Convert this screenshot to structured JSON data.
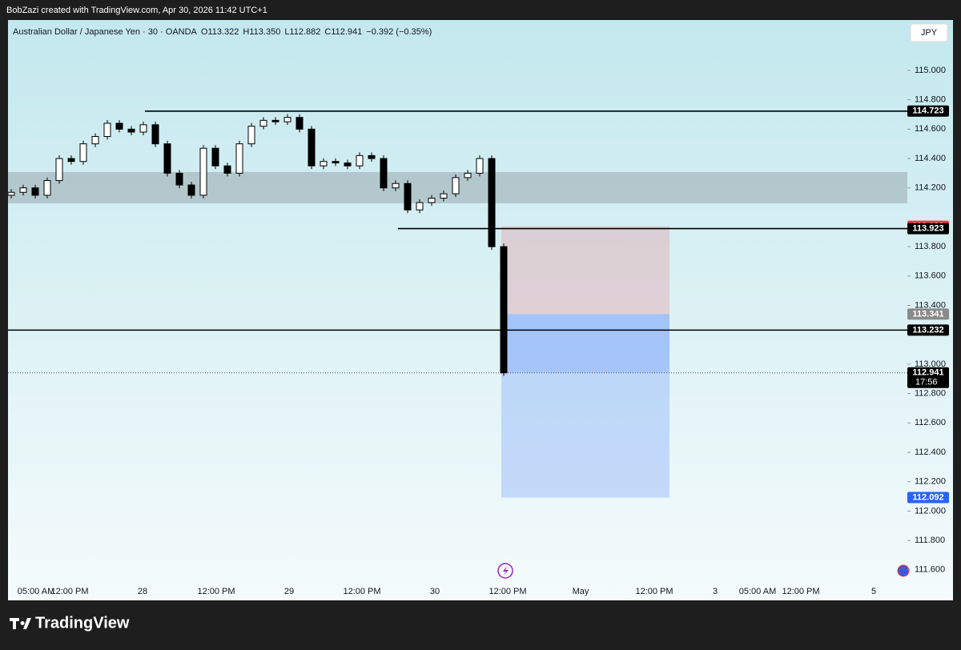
{
  "chart_data": {
    "type": "candlestick",
    "attribution": "BobZazi created with TradingView.com, Apr 30, 2026 11:42 UTC+1",
    "legend": {
      "symbol": "Australian Dollar / Japanese Yen · 30 · OANDA",
      "open": "O113.322",
      "high": "H113.350",
      "low": "L112.882",
      "close": "C112.941",
      "change": "−0.392 (−0.35%)"
    },
    "currency": "JPY",
    "brand": "TradingView",
    "first_open": 114.15,
    "closes": [
      114.17,
      114.2,
      114.15,
      114.25,
      114.4,
      114.38,
      114.5,
      114.55,
      114.64,
      114.6,
      114.58,
      114.63,
      114.5,
      114.3,
      114.22,
      114.15,
      114.47,
      114.35,
      114.3,
      114.5,
      114.62,
      114.66,
      114.65,
      114.68,
      114.6,
      114.35,
      114.38,
      114.37,
      114.35,
      114.42,
      114.4,
      114.2,
      114.23,
      114.05,
      114.1,
      114.13,
      114.16,
      114.27,
      114.3,
      114.4,
      113.8,
      112.941
    ],
    "ylim": [
      111.392,
      115.343
    ],
    "yticks": [
      {
        "value": 115.0,
        "label": "115.000"
      },
      {
        "value": 114.8,
        "label": "114.800"
      },
      {
        "value": 114.6,
        "label": "114.600"
      },
      {
        "value": 114.4,
        "label": "114.400"
      },
      {
        "value": 114.2,
        "label": "114.200"
      },
      {
        "value": 113.8,
        "label": "113.800"
      },
      {
        "value": 113.6,
        "label": "113.600"
      },
      {
        "value": 113.4,
        "label": "113.400"
      },
      {
        "value": 113.0,
        "label": "113.000"
      },
      {
        "value": 112.8,
        "label": "112.800"
      },
      {
        "value": 112.6,
        "label": "112.600"
      },
      {
        "value": 112.4,
        "label": "112.400"
      },
      {
        "value": 112.2,
        "label": "112.200"
      },
      {
        "value": 112.0,
        "label": "112.000"
      },
      {
        "value": 111.8,
        "label": "111.800"
      },
      {
        "value": 111.6,
        "label": "111.600"
      }
    ],
    "x_labels": [
      "05:00 AM",
      "12:00 PM",
      "28",
      "12:00 PM",
      "29",
      "12:00 PM",
      "30",
      "12:00 PM",
      "May",
      "12:00 PM",
      "3",
      "05:00 AM",
      "12:00 PM",
      "5"
    ],
    "zone": [
      114.095,
      114.308
    ],
    "horizontal_lines": [
      114.723,
      113.923,
      113.232
    ],
    "position": {
      "stop": 113.939,
      "entry": 113.341,
      "target": 112.092
    },
    "last_price": 112.941,
    "countdown": "17:56"
  }
}
